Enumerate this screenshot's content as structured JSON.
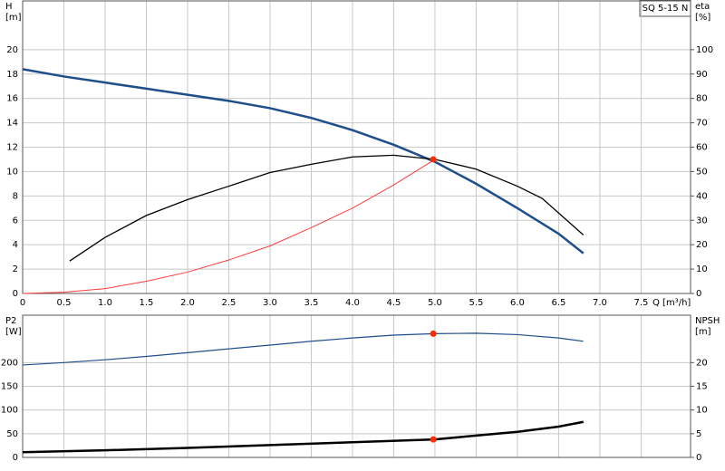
{
  "chart_data": [
    {
      "type": "line",
      "title": "SQ 5-15 N",
      "y_label": "H",
      "y_unit": "[m]",
      "y2_label": "eta",
      "y2_unit": "[%]",
      "x_label": "Q [m³/h]",
      "xlim": [
        0,
        8.1
      ],
      "xticks": [
        0,
        0.5,
        {
          "value": 1,
          "label": "1.0"
        },
        1.5,
        {
          "value": 2,
          "label": "2.0"
        },
        2.5,
        {
          "value": 3,
          "label": "3.0"
        },
        3.5,
        {
          "value": 4,
          "label": "4.0"
        },
        4.5,
        {
          "value": 5,
          "label": "5.0"
        },
        5.5,
        {
          "value": 6,
          "label": "6.0"
        },
        6.5,
        {
          "value": 7,
          "label": "7.0"
        },
        7.5
      ],
      "ylim": [
        0,
        24
      ],
      "yticks": [
        0,
        2,
        4,
        6,
        8,
        10,
        12,
        14,
        16,
        18,
        20
      ],
      "y2lim": [
        0,
        120
      ],
      "y2ticks": [
        0,
        10,
        20,
        30,
        40,
        50,
        60,
        70,
        80,
        90,
        100
      ],
      "grid": true,
      "series": [
        {
          "color": "#1f4e8c",
          "width": 2.5,
          "x": [
            0,
            0.5,
            1,
            1.5,
            2,
            2.5,
            3,
            3.5,
            4,
            4.5,
            5,
            5.5,
            6,
            6.5,
            6.8
          ],
          "values": [
            18.4,
            17.8,
            17.3,
            16.8,
            16.3,
            15.8,
            15.2,
            14.4,
            13.4,
            12.2,
            10.8,
            9.0,
            7.0,
            4.9,
            3.3
          ]
        },
        {
          "color": "#000000",
          "width": 1.3,
          "axis": "y2",
          "x": [
            0.57,
            1,
            1.5,
            2,
            2.5,
            3,
            3.5,
            4,
            4.5,
            5,
            5.5,
            6,
            6.3,
            6.8
          ],
          "values": [
            13.3,
            23,
            32,
            38.5,
            44,
            49.6,
            53,
            56,
            56.7,
            55,
            51,
            44,
            39,
            24
          ]
        },
        {
          "color": "#ff3c3c",
          "width": 1,
          "x": [
            0,
            0.5,
            1,
            1.5,
            2,
            2.5,
            3,
            3.5,
            4,
            4.5,
            5
          ],
          "values": [
            0,
            0.1,
            0.4,
            1.0,
            1.75,
            2.75,
            3.9,
            5.4,
            7.0,
            8.9,
            11.0
          ]
        }
      ],
      "points": [
        {
          "x": 4.98,
          "y": 11.0,
          "color": "#ff2a00"
        }
      ]
    },
    {
      "type": "line",
      "y_label": "P2",
      "y_unit": "[W]",
      "y2_label": "NPSH",
      "y2_unit": "[m]",
      "xlim": [
        0,
        8.1
      ],
      "ylim": [
        0,
        300
      ],
      "yticks": [
        0,
        50,
        100,
        150,
        200
      ],
      "y2lim": [
        0,
        30
      ],
      "y2ticks": [
        0,
        5,
        10,
        15,
        20
      ],
      "grid": true,
      "series": [
        {
          "color": "#1f4e8c",
          "width": 1.2,
          "x": [
            0,
            0.5,
            1,
            1.5,
            2,
            2.5,
            3,
            3.5,
            4,
            4.5,
            5,
            5.5,
            6,
            6.5,
            6.8
          ],
          "values": [
            195,
            200,
            206,
            213,
            221,
            229,
            237,
            245,
            252,
            258,
            261,
            262,
            259,
            252,
            245
          ]
        },
        {
          "color": "#000000",
          "width": 2.5,
          "axis": "y2",
          "x": [
            0,
            1,
            2,
            3,
            4,
            5,
            5.5,
            6,
            6.5,
            6.8
          ],
          "values": [
            1.1,
            1.5,
            2.0,
            2.6,
            3.2,
            3.8,
            4.6,
            5.4,
            6.5,
            7.5
          ]
        }
      ],
      "points": [
        {
          "x": 4.98,
          "y": 261,
          "color": "#ff2a00"
        },
        {
          "x": 4.98,
          "y": 3.8,
          "color": "#ff2a00",
          "axis": "y2"
        }
      ]
    }
  ]
}
